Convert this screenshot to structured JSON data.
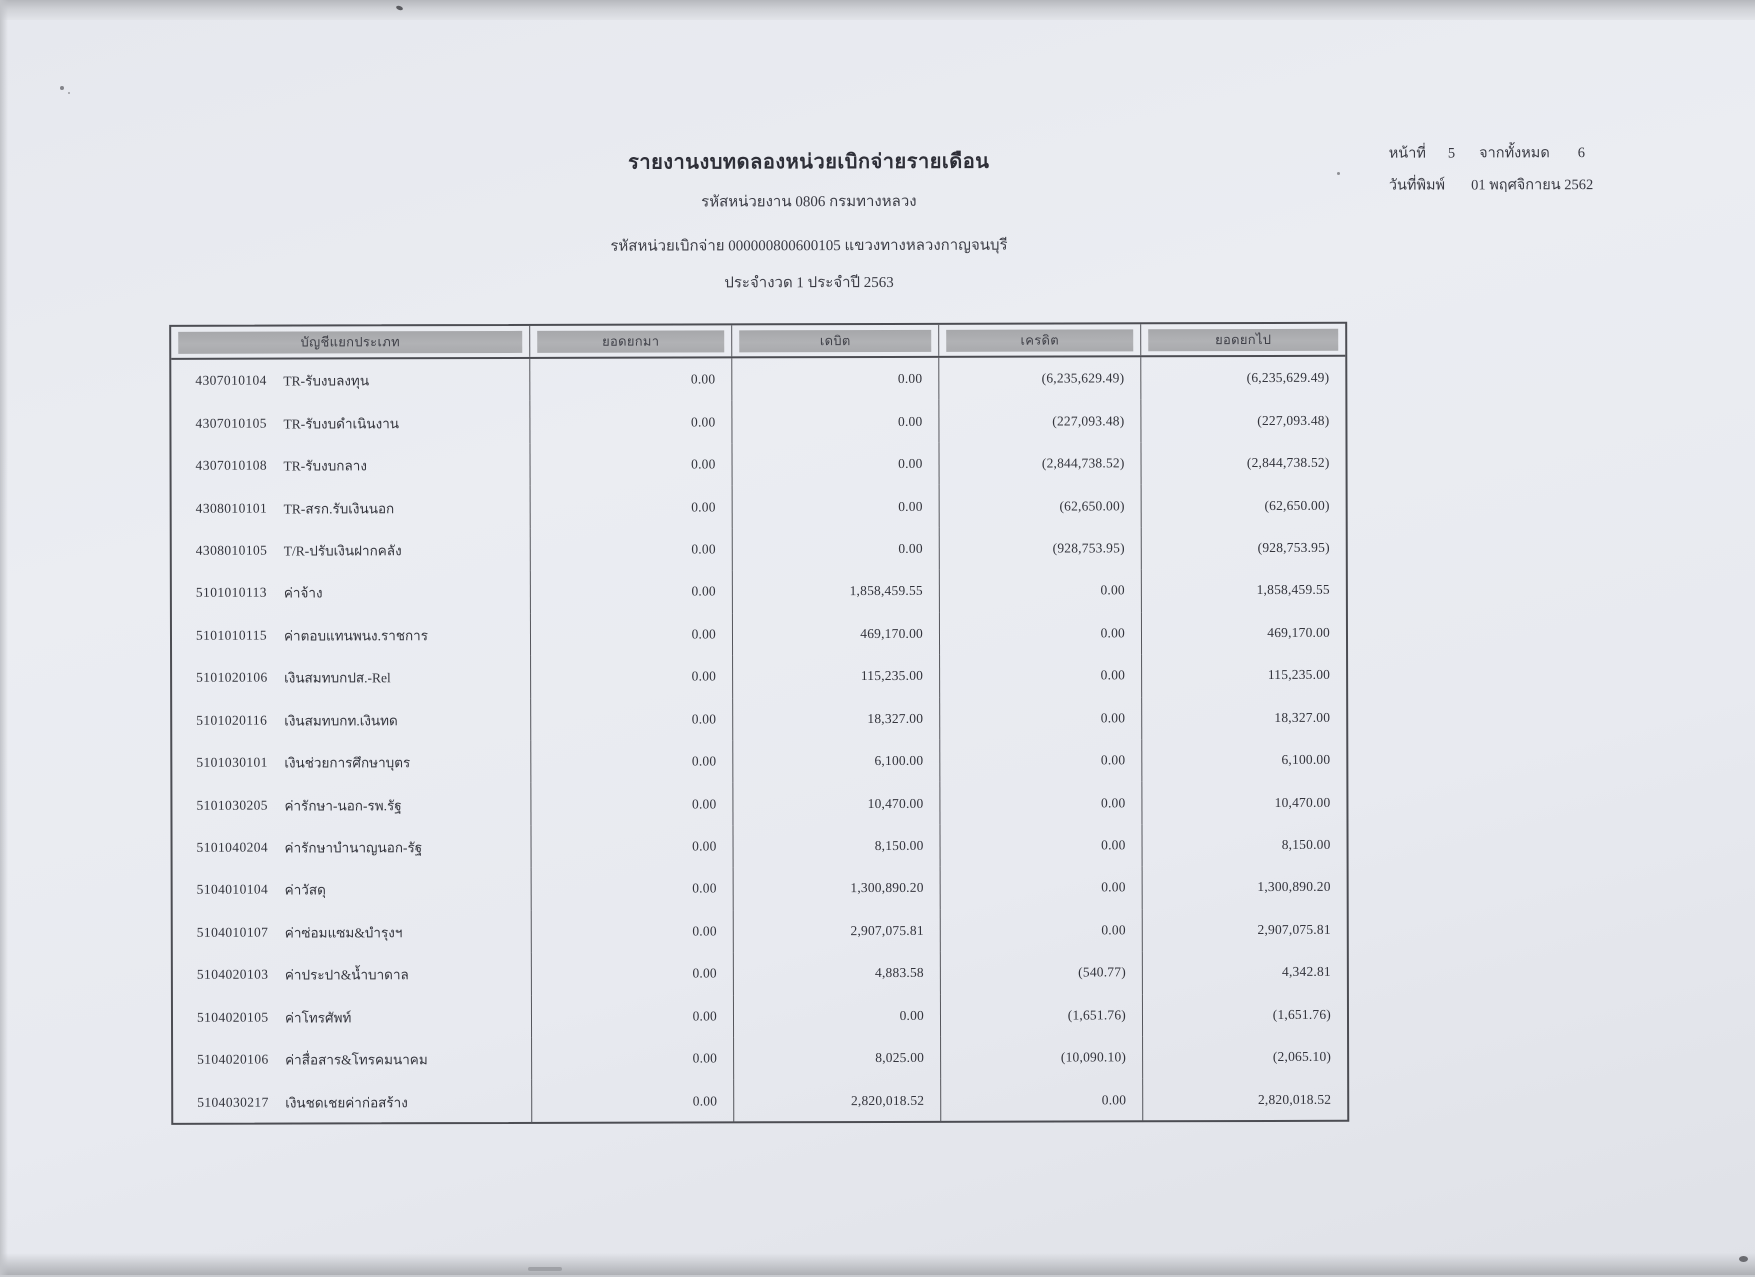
{
  "page": {
    "title": "รายงานงบทดลองหน่วยเบิกจ่ายรายเดือน",
    "agency_line": "รหัสหน่วยงาน 0806 กรมทางหลวง",
    "unit_line": "รหัสหน่วยเบิกจ่าย 000000800600105 แขวงทางหลวงกาญจนบุรี",
    "period_line": "ประจำงวด 1 ประจำปี 2563",
    "page_info": {
      "page_label": "หน้าที่",
      "page_number": "5",
      "of_label": "จากทั้งหมด",
      "total_pages": "6",
      "print_date_label": "วันที่พิมพ์",
      "print_date": "01 พฤศจิกายน 2562"
    }
  },
  "table": {
    "columns": [
      "บัญชีแยกประเภท",
      "ยอดยกมา",
      "เดบิต",
      "เครดิต",
      "ยอดยกไป"
    ],
    "rows": [
      {
        "code": "4307010104",
        "name": "TR-รับงบลงทุน",
        "carry": "0.00",
        "debit": "0.00",
        "credit": "(6,235,629.49)",
        "balance": "(6,235,629.49)"
      },
      {
        "code": "4307010105",
        "name": "TR-รับงบดำเนินงาน",
        "carry": "0.00",
        "debit": "0.00",
        "credit": "(227,093.48)",
        "balance": "(227,093.48)"
      },
      {
        "code": "4307010108",
        "name": "TR-รับงบกลาง",
        "carry": "0.00",
        "debit": "0.00",
        "credit": "(2,844,738.52)",
        "balance": "(2,844,738.52)"
      },
      {
        "code": "4308010101",
        "name": "TR-สรก.รับเงินนอก",
        "carry": "0.00",
        "debit": "0.00",
        "credit": "(62,650.00)",
        "balance": "(62,650.00)"
      },
      {
        "code": "4308010105",
        "name": "T/R-ปรับเงินฝากคลัง",
        "carry": "0.00",
        "debit": "0.00",
        "credit": "(928,753.95)",
        "balance": "(928,753.95)"
      },
      {
        "code": "5101010113",
        "name": "ค่าจ้าง",
        "carry": "0.00",
        "debit": "1,858,459.55",
        "credit": "0.00",
        "balance": "1,858,459.55"
      },
      {
        "code": "5101010115",
        "name": "ค่าตอบแทนพนง.ราชการ",
        "carry": "0.00",
        "debit": "469,170.00",
        "credit": "0.00",
        "balance": "469,170.00"
      },
      {
        "code": "5101020106",
        "name": "เงินสมทบกปส.-Rel",
        "carry": "0.00",
        "debit": "115,235.00",
        "credit": "0.00",
        "balance": "115,235.00"
      },
      {
        "code": "5101020116",
        "name": "เงินสมทบกท.เงินทด",
        "carry": "0.00",
        "debit": "18,327.00",
        "credit": "0.00",
        "balance": "18,327.00"
      },
      {
        "code": "5101030101",
        "name": "เงินช่วยการศึกษาบุตร",
        "carry": "0.00",
        "debit": "6,100.00",
        "credit": "0.00",
        "balance": "6,100.00"
      },
      {
        "code": "5101030205",
        "name": "ค่ารักษา-นอก-รพ.รัฐ",
        "carry": "0.00",
        "debit": "10,470.00",
        "credit": "0.00",
        "balance": "10,470.00"
      },
      {
        "code": "5101040204",
        "name": "ค่ารักษาบำนาญนอก-รัฐ",
        "carry": "0.00",
        "debit": "8,150.00",
        "credit": "0.00",
        "balance": "8,150.00"
      },
      {
        "code": "5104010104",
        "name": "ค่าวัสดุ",
        "carry": "0.00",
        "debit": "1,300,890.20",
        "credit": "0.00",
        "balance": "1,300,890.20"
      },
      {
        "code": "5104010107",
        "name": "ค่าซ่อมแซม&บำรุงฯ",
        "carry": "0.00",
        "debit": "2,907,075.81",
        "credit": "0.00",
        "balance": "2,907,075.81"
      },
      {
        "code": "5104020103",
        "name": "ค่าประปา&น้ำบาดาล",
        "carry": "0.00",
        "debit": "4,883.58",
        "credit": "(540.77)",
        "balance": "4,342.81"
      },
      {
        "code": "5104020105",
        "name": "ค่าโทรศัพท์",
        "carry": "0.00",
        "debit": "0.00",
        "credit": "(1,651.76)",
        "balance": "(1,651.76)"
      },
      {
        "code": "5104020106",
        "name": "ค่าสื่อสาร&โทรคมนาคม",
        "carry": "0.00",
        "debit": "8,025.00",
        "credit": "(10,090.10)",
        "balance": "(2,065.10)"
      },
      {
        "code": "5104030217",
        "name": "เงินชดเชยค่าก่อสร้าง",
        "carry": "0.00",
        "debit": "2,820,018.52",
        "credit": "0.00",
        "balance": "2,820,018.52"
      }
    ]
  },
  "colors": {
    "paper": "#eaecf2",
    "header_bar": "#aaabae",
    "ink": "#32333b",
    "table_border": "#4c4d53"
  }
}
